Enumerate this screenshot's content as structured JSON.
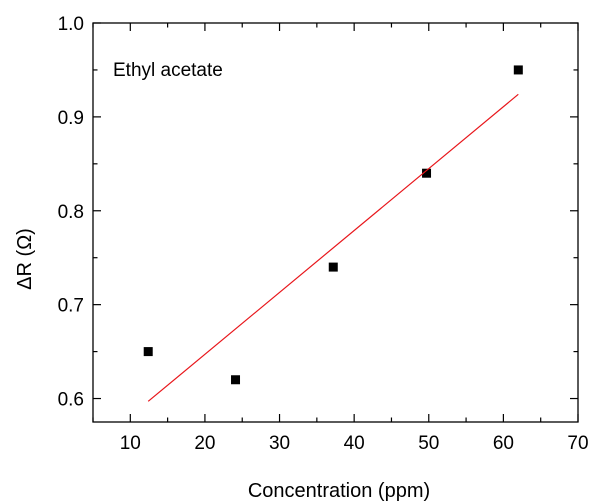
{
  "chart_data": {
    "type": "scatter",
    "xlabel": "Concentration (ppm)",
    "ylabel": "ΔR (Ω)",
    "annotation": "Ethyl acetate",
    "xlim": [
      5,
      70
    ],
    "ylim": [
      0.575,
      1.0
    ],
    "xticks": [
      10,
      20,
      30,
      40,
      50,
      60,
      70
    ],
    "xtick_labels": [
      "10",
      "20",
      "30",
      "40",
      "50",
      "60",
      "70"
    ],
    "yticks": [
      0.6,
      0.7,
      0.8,
      0.9,
      1.0
    ],
    "ytick_labels": [
      "0.6",
      "0.7",
      "0.8",
      "0.9",
      "1.0"
    ],
    "grid": false,
    "series": [
      {
        "type": "scatter",
        "color": "#000000",
        "x": [
          12.4,
          24.1,
          37.2,
          49.7,
          62.0
        ],
        "y": [
          0.65,
          0.62,
          0.74,
          0.84,
          0.95
        ]
      },
      {
        "type": "line",
        "color": "#e8161b",
        "x": [
          12.4,
          62.0
        ],
        "y": [
          0.597,
          0.924
        ]
      }
    ]
  }
}
